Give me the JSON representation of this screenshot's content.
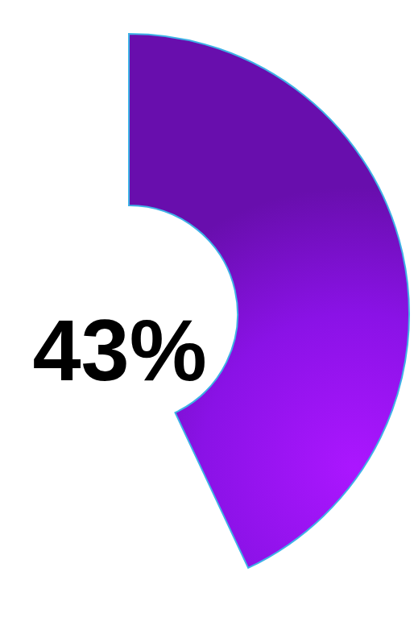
{
  "chart_data": {
    "type": "donut",
    "values": [
      43
    ],
    "value_labels": [
      "43%"
    ],
    "color": "#8a12e6",
    "data_labels": true
  }
}
